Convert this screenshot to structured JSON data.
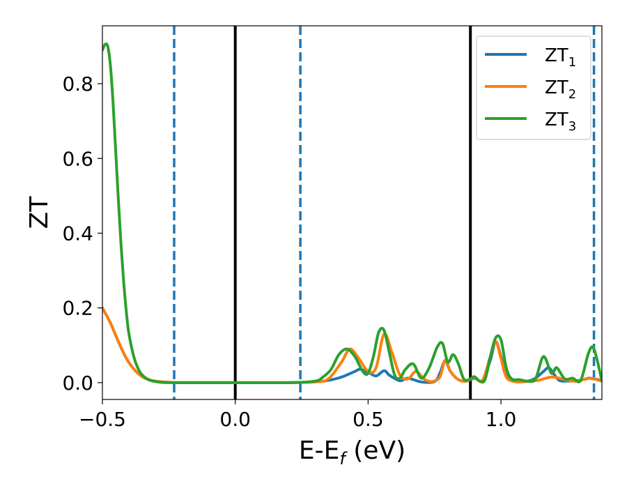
{
  "chart_data": {
    "type": "line",
    "xlabel": {
      "main": "E-E",
      "sub": "f",
      "tail": " (eV)"
    },
    "ylabel": "ZT",
    "xlim": [
      -0.5,
      1.38
    ],
    "ylim": [
      -0.045,
      0.955
    ],
    "x_ticks": [
      -0.5,
      0.0,
      0.5,
      1.0
    ],
    "x_tick_labels": [
      "−0.5",
      "0.0",
      "0.5",
      "1.0"
    ],
    "y_ticks": [
      0.0,
      0.2,
      0.4,
      0.6,
      0.8
    ],
    "y_tick_labels": [
      "0.0",
      "0.2",
      "0.4",
      "0.6",
      "0.8"
    ],
    "legend_position": "top-right",
    "vlines": [
      {
        "x": -0.23,
        "style": "dashed",
        "color": "#1f77b4"
      },
      {
        "x": 0.0,
        "style": "solid",
        "color": "#000000"
      },
      {
        "x": 0.245,
        "style": "dashed",
        "color": "#1f77b4"
      },
      {
        "x": 0.885,
        "style": "solid",
        "color": "#000000"
      },
      {
        "x": 1.35,
        "style": "dashed",
        "color": "#1f77b4"
      }
    ],
    "series": [
      {
        "name": {
          "main": "ZT",
          "sub": "1"
        },
        "color": "#1f77b4",
        "x": [
          -0.5,
          -0.47,
          -0.44,
          -0.41,
          -0.38,
          -0.35,
          -0.32,
          -0.29,
          -0.25,
          -0.2,
          0.0,
          0.2,
          0.3,
          0.35,
          0.4,
          0.45,
          0.47,
          0.5,
          0.53,
          0.56,
          0.58,
          0.62,
          0.65,
          0.7,
          0.75,
          0.77,
          0.79,
          0.81,
          0.84,
          0.87,
          0.9,
          0.93,
          0.96,
          0.98,
          1.0,
          1.02,
          1.04,
          1.07,
          1.1,
          1.13,
          1.16,
          1.18,
          1.2,
          1.22,
          1.25,
          1.28,
          1.31,
          1.33,
          1.35,
          1.38
        ],
        "y": [
          0.2,
          0.16,
          0.11,
          0.065,
          0.035,
          0.016,
          0.007,
          0.003,
          0.001,
          0.0,
          0.0,
          0.0,
          0.002,
          0.006,
          0.015,
          0.03,
          0.036,
          0.028,
          0.018,
          0.032,
          0.02,
          0.005,
          0.012,
          0.002,
          0.003,
          0.025,
          0.058,
          0.03,
          0.008,
          0.004,
          0.012,
          0.006,
          0.06,
          0.11,
          0.07,
          0.02,
          0.006,
          0.003,
          0.004,
          0.012,
          0.03,
          0.04,
          0.022,
          0.006,
          0.004,
          0.005,
          0.008,
          0.012,
          0.01,
          0.006
        ]
      },
      {
        "name": {
          "main": "ZT",
          "sub": "2"
        },
        "color": "#ff7f0e",
        "x": [
          -0.5,
          -0.47,
          -0.44,
          -0.41,
          -0.38,
          -0.35,
          -0.32,
          -0.29,
          -0.25,
          -0.2,
          0.0,
          0.2,
          0.3,
          0.35,
          0.4,
          0.43,
          0.46,
          0.5,
          0.53,
          0.56,
          0.59,
          0.62,
          0.65,
          0.68,
          0.71,
          0.74,
          0.77,
          0.79,
          0.81,
          0.84,
          0.87,
          0.9,
          0.93,
          0.96,
          0.98,
          1.0,
          1.02,
          1.05,
          1.08,
          1.11,
          1.14,
          1.16,
          1.19,
          1.22,
          1.25,
          1.28,
          1.31,
          1.34,
          1.36,
          1.38
        ],
        "y": [
          0.2,
          0.16,
          0.11,
          0.065,
          0.035,
          0.016,
          0.007,
          0.003,
          0.001,
          0.0,
          0.0,
          0.0,
          0.002,
          0.01,
          0.055,
          0.09,
          0.07,
          0.03,
          0.04,
          0.13,
          0.08,
          0.02,
          0.01,
          0.03,
          0.01,
          0.003,
          0.015,
          0.06,
          0.03,
          0.008,
          0.004,
          0.014,
          0.005,
          0.07,
          0.11,
          0.065,
          0.015,
          0.003,
          0.002,
          0.004,
          0.006,
          0.01,
          0.015,
          0.012,
          0.006,
          0.004,
          0.008,
          0.012,
          0.008,
          0.004
        ]
      },
      {
        "name": {
          "main": "ZT",
          "sub": "3"
        },
        "color": "#2ca02c",
        "x": [
          -0.5,
          -0.49,
          -0.48,
          -0.47,
          -0.46,
          -0.45,
          -0.44,
          -0.43,
          -0.42,
          -0.41,
          -0.4,
          -0.38,
          -0.36,
          -0.34,
          -0.32,
          -0.3,
          -0.28,
          -0.25,
          -0.2,
          0.0,
          0.2,
          0.3,
          0.33,
          0.36,
          0.39,
          0.42,
          0.45,
          0.48,
          0.5,
          0.52,
          0.54,
          0.56,
          0.58,
          0.6,
          0.62,
          0.64,
          0.67,
          0.7,
          0.73,
          0.76,
          0.78,
          0.8,
          0.82,
          0.84,
          0.86,
          0.88,
          0.9,
          0.92,
          0.94,
          0.96,
          0.98,
          1.0,
          1.02,
          1.04,
          1.07,
          1.1,
          1.13,
          1.16,
          1.19,
          1.21,
          1.24,
          1.27,
          1.3,
          1.33,
          1.35,
          1.38
        ],
        "y": [
          0.89,
          0.905,
          0.9,
          0.85,
          0.75,
          0.62,
          0.49,
          0.37,
          0.27,
          0.19,
          0.13,
          0.065,
          0.03,
          0.014,
          0.006,
          0.003,
          0.001,
          0.0,
          0.0,
          0.0,
          0.0,
          0.004,
          0.015,
          0.035,
          0.075,
          0.09,
          0.07,
          0.03,
          0.025,
          0.07,
          0.135,
          0.14,
          0.08,
          0.02,
          0.012,
          0.035,
          0.05,
          0.012,
          0.04,
          0.095,
          0.105,
          0.055,
          0.075,
          0.05,
          0.01,
          0.008,
          0.016,
          0.004,
          0.008,
          0.07,
          0.12,
          0.115,
          0.04,
          0.01,
          0.008,
          0.004,
          0.01,
          0.07,
          0.025,
          0.04,
          0.01,
          0.012,
          0.006,
          0.08,
          0.09,
          0.005
        ]
      }
    ]
  }
}
